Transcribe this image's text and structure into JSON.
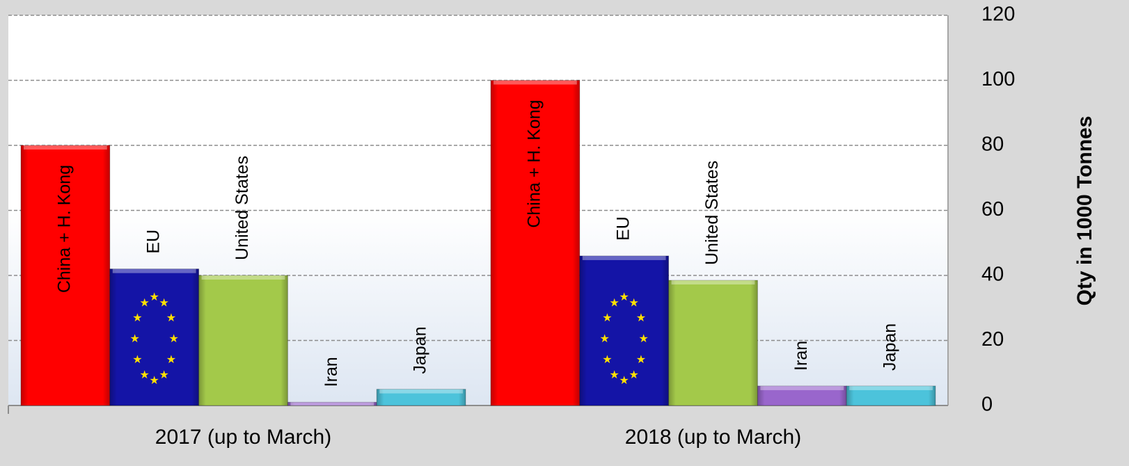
{
  "chart_data": {
    "type": "bar",
    "y_axis_label": "Qty in 1000 Tonnes",
    "y_axis_position": "right",
    "categories": [
      "2017 (up to March)",
      "2018 (up to March)"
    ],
    "series": [
      {
        "name": "China + H. Kong",
        "color": "#ff0000",
        "values": [
          80,
          100
        ]
      },
      {
        "name": "EU",
        "color": "#1414a6",
        "values": [
          42,
          46
        ]
      },
      {
        "name": "United States",
        "color": "#a3c94a",
        "values": [
          40,
          38.5
        ]
      },
      {
        "name": "Iran",
        "color": "#9966cc",
        "values": [
          1,
          6
        ]
      },
      {
        "name": "Japan",
        "color": "#4cc3db",
        "values": [
          5,
          6
        ]
      }
    ],
    "ylim": [
      0,
      120
    ],
    "yticks": [
      0,
      20,
      40,
      60,
      80,
      100,
      120
    ],
    "grid": true
  }
}
